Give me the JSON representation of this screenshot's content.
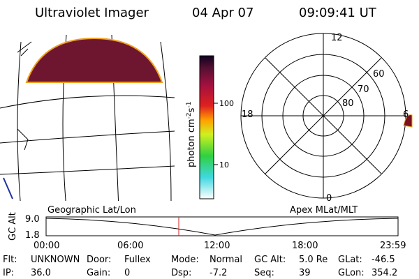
{
  "header": {
    "instrument": "Ultraviolet Imager",
    "date": "04 Apr 07",
    "time": "09:09:41 UT"
  },
  "colorbar": {
    "label": {
      "text": "photon cm",
      "exp1": "-2",
      "unit2": "s",
      "exp2": "-1"
    },
    "ticks": [
      "100",
      "10"
    ]
  },
  "polar": {
    "labels": {
      "top": "12",
      "bottom": "0",
      "left": "18",
      "right": "6",
      "ring60": "60",
      "ring70": "70",
      "ring80": "80"
    }
  },
  "orbit_plot": {
    "left_label": "Geographic Lat/Lon",
    "right_label": "Apex MLat/MLT",
    "axis_label": "GC Alt",
    "yticks": [
      "9.0",
      "1.8"
    ],
    "xticks": [
      "00:00",
      "06:00",
      "12:00",
      "18:00",
      "23:59"
    ]
  },
  "info": {
    "rows": [
      [
        {
          "label": "Flt:",
          "value": "UNKNOWN"
        },
        {
          "label": "Door:",
          "value": "Fullex"
        },
        {
          "label": "Mode:",
          "value": "Normal"
        },
        {
          "label": "GC Alt:",
          "value": "5.0 Re"
        },
        {
          "label": "GLat:",
          "value": "-46.5"
        }
      ],
      [
        {
          "label": "IP:",
          "value": "36.0"
        },
        {
          "label": "Gain:",
          "value": "0"
        },
        {
          "label": "Dsp:",
          "value": "-7.2"
        },
        {
          "label": "Seq:",
          "value": "39"
        },
        {
          "label": "GLon:",
          "value": "354.2"
        }
      ]
    ]
  }
}
